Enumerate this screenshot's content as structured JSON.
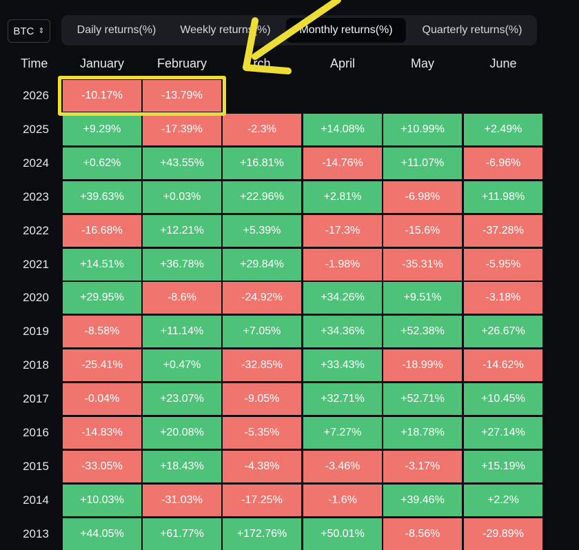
{
  "asset_selector": {
    "label": "BTC",
    "icon": "chevron-updown-icon"
  },
  "tabs": [
    {
      "label": "Daily returns(%)",
      "active": false
    },
    {
      "label": "Weekly returns(%)",
      "active": false
    },
    {
      "label": "Monthly returns(%)",
      "active": true
    },
    {
      "label": "Quarterly returns(%)",
      "active": false
    }
  ],
  "table": {
    "time_header": "Time",
    "months": [
      "January",
      "February",
      "rch",
      "April",
      "May",
      "June"
    ],
    "rows": [
      {
        "year": "2026",
        "values": [
          "-10.17%",
          "-13.79%"
        ]
      },
      {
        "year": "2025",
        "values": [
          "+9.29%",
          "-17.39%",
          "-2.3%",
          "+14.08%",
          "+10.99%",
          "+2.49%"
        ]
      },
      {
        "year": "2024",
        "values": [
          "+0.62%",
          "+43.55%",
          "+16.81%",
          "-14.76%",
          "+11.07%",
          "-6.96%"
        ]
      },
      {
        "year": "2023",
        "values": [
          "+39.63%",
          "+0.03%",
          "+22.96%",
          "+2.81%",
          "-6.98%",
          "+11.98%"
        ]
      },
      {
        "year": "2022",
        "values": [
          "-16.68%",
          "+12.21%",
          "+5.39%",
          "-17.3%",
          "-15.6%",
          "-37.28%"
        ]
      },
      {
        "year": "2021",
        "values": [
          "+14.51%",
          "+36.78%",
          "+29.84%",
          "-1.98%",
          "-35.31%",
          "-5.95%"
        ]
      },
      {
        "year": "2020",
        "values": [
          "+29.95%",
          "-8.6%",
          "-24.92%",
          "+34.26%",
          "+9.51%",
          "-3.18%"
        ]
      },
      {
        "year": "2019",
        "values": [
          "-8.58%",
          "+11.14%",
          "+7.05%",
          "+34.36%",
          "+52.38%",
          "+26.67%"
        ]
      },
      {
        "year": "2018",
        "values": [
          "-25.41%",
          "+0.47%",
          "-32.85%",
          "+33.43%",
          "-18.99%",
          "-14.62%"
        ]
      },
      {
        "year": "2017",
        "values": [
          "-0.04%",
          "+23.07%",
          "-9.05%",
          "+32.71%",
          "+52.71%",
          "+10.45%"
        ]
      },
      {
        "year": "2016",
        "values": [
          "-14.83%",
          "+20.08%",
          "-5.35%",
          "+7.27%",
          "+18.78%",
          "+27.14%"
        ]
      },
      {
        "year": "2015",
        "values": [
          "-33.05%",
          "+18.43%",
          "-4.38%",
          "-3.46%",
          "-3.17%",
          "+15.19%"
        ]
      },
      {
        "year": "2014",
        "values": [
          "+10.03%",
          "-31.03%",
          "-17.25%",
          "-1.6%",
          "+39.46%",
          "+2.2%"
        ]
      },
      {
        "year": "2013",
        "values": [
          "+44.05%",
          "+61.77%",
          "+172.76%",
          "+50.01%",
          "-8.56%",
          "-29.89%"
        ]
      }
    ]
  },
  "colors": {
    "positive": "#4fc27a",
    "negative": "#f1756f",
    "highlight": "#ecde35",
    "annotation_arrow": "#ecde35",
    "background": "#0b0c0f"
  }
}
